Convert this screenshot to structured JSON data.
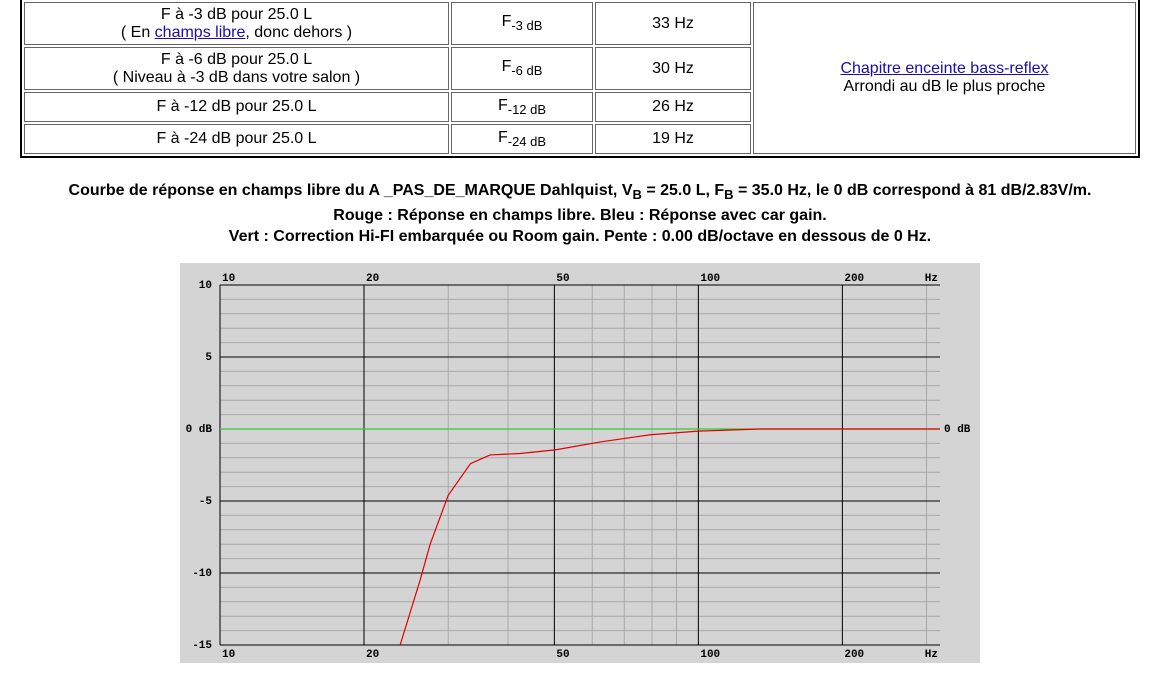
{
  "table": {
    "rows": [
      {
        "label": "F à -3 dB pour 25.0 L",
        "note": [
          "( En ",
          "champs libre",
          ", donc dehors )"
        ],
        "symbol": "F",
        "sub": "-3 dB",
        "value": "33 Hz"
      },
      {
        "label": "F à -6 dB pour 25.0 L",
        "note": [
          "( Niveau à -3 dB dans votre salon )"
        ],
        "symbol": "F",
        "sub": "-6 dB",
        "value": "30 Hz"
      },
      {
        "label": "F à -12 dB pour 25.0 L",
        "symbol": "F",
        "sub": "-12 dB",
        "value": "26 Hz"
      },
      {
        "label": "F à -24 dB pour 25.0 L",
        "symbol": "F",
        "sub": "-24 dB",
        "value": "19 Hz"
      }
    ],
    "side": {
      "link": "Chapitre enceinte bass-reflex",
      "note": "Arrondi au dB le plus proche"
    }
  },
  "caption": {
    "line1": [
      "Courbe de réponse en champs libre du A _PAS_DE_MARQUE Dahlquist, V",
      "B",
      " = 25.0 L, F",
      "B",
      " = 35.0 Hz, le 0 dB correspond à 81 dB/2.83V/m."
    ],
    "line2": "Rouge : Réponse en champs libre. Bleu : Réponse avec car gain.",
    "line3": "Vert : Correction Hi-FI embarquée ou Room gain. Pente : 0.00 dB/octave en dessous de 0 Hz."
  },
  "chart_data": {
    "type": "line",
    "log_x": true,
    "grid": true,
    "xlim": [
      10,
      320
    ],
    "ylim": [
      -15,
      10
    ],
    "xticks": [
      10,
      20,
      50,
      100,
      200
    ],
    "x_unit": "Hz",
    "xminorticks": [
      30,
      40,
      60,
      70,
      80,
      90,
      300
    ],
    "yticks": [
      -15,
      -10,
      -5,
      {
        "value": 0,
        "label": "0 dB"
      },
      5,
      10
    ],
    "yminorticks": [
      -14,
      -13,
      -12,
      -11,
      -9,
      -8,
      -7,
      -6,
      -4,
      -3,
      -2,
      -1,
      1,
      2,
      3,
      4,
      6,
      7,
      8,
      9
    ],
    "series": [
      {
        "name": "Vert",
        "color": "#33cc33",
        "x": [
          10,
          320
        ],
        "values": [
          0,
          0
        ]
      },
      {
        "name": "Rouge",
        "color": "#e00000",
        "x": [
          23.8,
          26.2,
          27.5,
          30.0,
          33.4,
          36.7,
          42.4,
          50.2,
          62.4,
          79.3,
          100,
          134.8,
          320
        ],
        "values": [
          -15,
          -10.5,
          -8,
          -4.6,
          -2.4,
          -1.8,
          -1.7,
          -1.45,
          -0.9,
          -0.4,
          -0.15,
          0,
          0
        ]
      }
    ]
  }
}
